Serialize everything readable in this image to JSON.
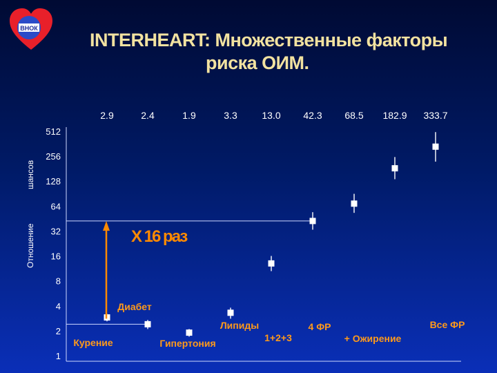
{
  "title": {
    "line1": "INTERHEART: Множественные факторы",
    "line2": "риска ОИМ."
  },
  "logo": {
    "text": "ВНОК",
    "heart_color": "#e8202a",
    "inner_color": "#2a4bc8"
  },
  "colors": {
    "accent": "#ff8a00",
    "title": "#f2e2a0",
    "marker": "#ffffff"
  },
  "chart_data": {
    "type": "scatter",
    "y_scale": "log2",
    "ylim": [
      1,
      512
    ],
    "yticks": [
      1,
      2,
      4,
      8,
      16,
      32,
      64,
      128,
      256,
      512
    ],
    "ytick_labels": [
      "1",
      "2",
      "4",
      "8",
      "16",
      "32",
      "64",
      "128",
      "256",
      "512"
    ],
    "ylabel_fragments": [
      "Отношение",
      "шансов"
    ],
    "categories": [
      "Курение",
      "Диабет",
      "Гипертония",
      "Липиды",
      "1+2+3",
      "4 ФР",
      "+ Ожирение",
      "",
      "Все ФР"
    ],
    "odds_ratios": [
      2.9,
      2.4,
      1.9,
      3.3,
      13.0,
      42.3,
      68.5,
      182.9,
      333.7
    ],
    "top_labels": [
      "2.9",
      "2.4",
      "1.9",
      "3.3",
      "13.0",
      "42.3",
      "68.5",
      "182.9",
      "333.7"
    ],
    "ci_low": [
      2.6,
      2.1,
      1.7,
      2.8,
      10.5,
      33.2,
      53.0,
      135.0,
      220.0
    ],
    "ci_high": [
      3.2,
      2.7,
      2.1,
      3.8,
      16.0,
      54.0,
      90.0,
      250.0,
      500.0
    ],
    "annotation": "X 16 раз"
  }
}
